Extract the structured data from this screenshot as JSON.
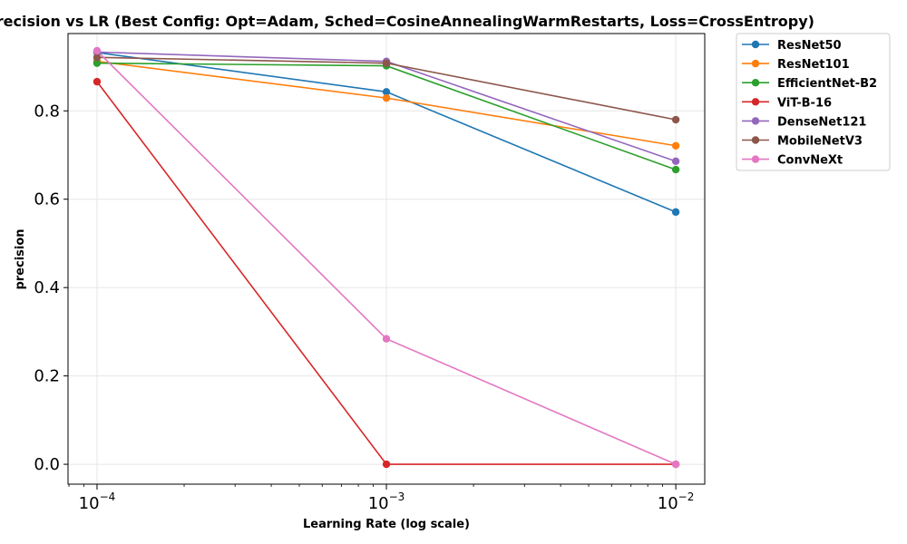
{
  "chart_data": {
    "type": "line",
    "title": "Precision vs LR (Best Config: Opt=Adam, Sched=CosineAnnealingWarmRestarts, Loss=CrossEntropy)",
    "xlabel": "Learning Rate (log scale)",
    "ylabel": "precision",
    "x_scale": "log",
    "x": [
      0.0001,
      0.001,
      0.01
    ],
    "x_tick_labels": [
      {
        "value": 0.0001,
        "base": "10",
        "exp": "−4"
      },
      {
        "value": 0.001,
        "base": "10",
        "exp": "−3"
      },
      {
        "value": 0.01,
        "base": "10",
        "exp": "−2"
      }
    ],
    "xlim": [
      7.94e-05,
      0.01259
    ],
    "ylim": [
      -0.045,
      0.975
    ],
    "y_ticks": [
      0.0,
      0.2,
      0.4,
      0.6,
      0.8
    ],
    "y_tick_labels": [
      "0.0",
      "0.2",
      "0.4",
      "0.6",
      "0.8"
    ],
    "grid": true,
    "legend_position": "outside-top-right",
    "series": [
      {
        "name": "ResNet50",
        "color": "#1f77b4",
        "values": [
          0.932,
          0.843,
          0.571
        ]
      },
      {
        "name": "ResNet101",
        "color": "#ff7f0e",
        "values": [
          0.912,
          0.829,
          0.721
        ]
      },
      {
        "name": "EfficientNet-B2",
        "color": "#2ca02c",
        "values": [
          0.908,
          0.902,
          0.667
        ]
      },
      {
        "name": "ViT-B-16",
        "color": "#d62728",
        "values": [
          0.866,
          0.0,
          0.0
        ]
      },
      {
        "name": "DenseNet121",
        "color": "#9467bd",
        "values": [
          0.933,
          0.912,
          0.686
        ]
      },
      {
        "name": "MobileNetV3",
        "color": "#8c564b",
        "values": [
          0.921,
          0.908,
          0.78
        ]
      },
      {
        "name": "ConvNeXt",
        "color": "#e377c2",
        "values": [
          0.936,
          0.284,
          0.0
        ]
      }
    ]
  }
}
